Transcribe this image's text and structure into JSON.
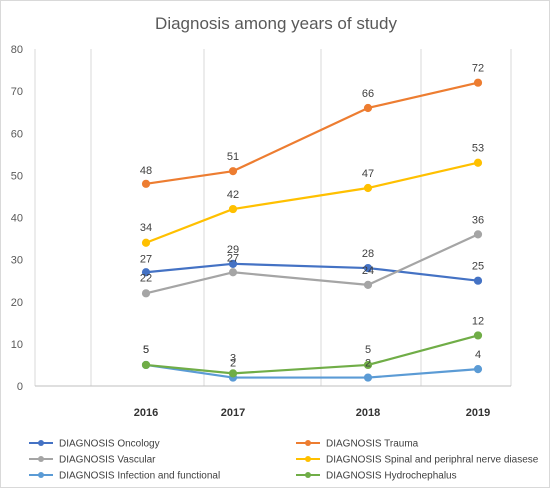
{
  "chart_data": {
    "type": "line",
    "title": "Diagnosis among years of study",
    "x": [
      2016,
      2017,
      2018,
      2019
    ],
    "ylim": [
      0,
      80
    ],
    "yticks": [
      0,
      10,
      20,
      30,
      40,
      50,
      60,
      70,
      80
    ],
    "grid": "vertical",
    "legend_placement": "bottom",
    "series": [
      {
        "name": "DIAGNOSIS Oncology",
        "color": "#4472c4",
        "values": [
          27,
          29,
          28,
          25
        ]
      },
      {
        "name": "DIAGNOSIS Trauma",
        "color": "#ed7d31",
        "values": [
          48,
          51,
          66,
          72
        ]
      },
      {
        "name": "DIAGNOSIS Vascular",
        "color": "#a5a5a5",
        "values": [
          22,
          27,
          24,
          36
        ]
      },
      {
        "name": "DIAGNOSIS Spinal and periphral nerve diasese",
        "color": "#ffc000",
        "values": [
          34,
          42,
          47,
          53
        ]
      },
      {
        "name": "DIAGNOSIS Infection and functional",
        "color": "#5b9bd5",
        "values": [
          5,
          2,
          2,
          4
        ]
      },
      {
        "name": "DIAGNOSIS Hydrochephalus",
        "color": "#70ad47",
        "values": [
          5,
          3,
          5,
          12
        ]
      }
    ]
  }
}
